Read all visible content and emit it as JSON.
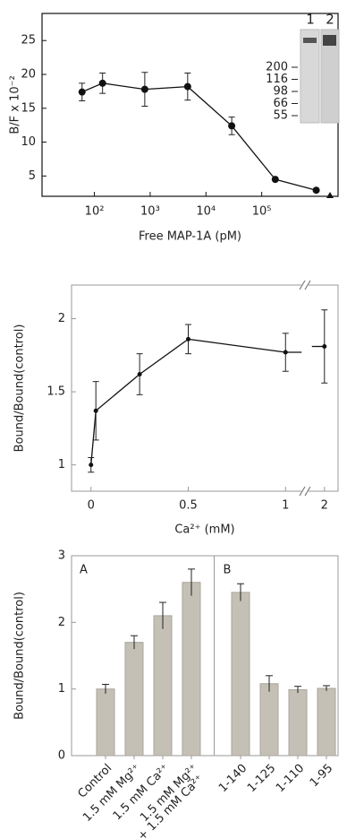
{
  "chart_data": [
    {
      "type": "line",
      "x_label": "Free MAP-1A (pM)",
      "y_label": "B/F x 10⁻²",
      "xscale": "log",
      "x": [
        60,
        140,
        800,
        4700,
        29000,
        175000,
        950000
      ],
      "values": [
        17.4,
        18.7,
        17.8,
        18.2,
        12.4,
        4.5,
        2.9
      ],
      "errors": [
        1.3,
        1.5,
        2.5,
        2.0,
        1.3,
        null,
        null
      ],
      "xlim": [
        11.5,
        2340000
      ],
      "ylim": [
        2,
        29
      ],
      "xticks": [
        {
          "value": 100,
          "label": "10²"
        },
        {
          "value": 1000,
          "label": "10³"
        },
        {
          "value": 10000,
          "label": "10⁴"
        },
        {
          "value": 100000,
          "label": "10⁵"
        }
      ],
      "yticks": [
        5,
        10,
        15,
        20,
        25
      ],
      "color": "#111",
      "inset": {
        "lanes": [
          "1",
          "2"
        ],
        "markers": [
          "200",
          "116",
          "98",
          "66",
          "55"
        ]
      }
    },
    {
      "type": "line",
      "x_label": "Ca²⁺ (mM)",
      "y_label": "Bound/Bound(control)",
      "x": [
        0,
        0.025,
        0.25,
        0.5,
        1,
        2
      ],
      "values": [
        1.0,
        1.37,
        1.62,
        1.86,
        1.77,
        1.81
      ],
      "errors": [
        0.05,
        0.2,
        0.14,
        0.1,
        0.13,
        0.25
      ],
      "xlim": [
        -0.1,
        2.07
      ],
      "x_break": [
        1.1,
        1.9
      ],
      "ylim": [
        0.82,
        2.23
      ],
      "xticks": [
        0,
        0.5,
        1,
        2
      ],
      "yticks": [
        1,
        1.5,
        2
      ],
      "color": "#111"
    },
    {
      "type": "bar",
      "y_label": "Bound/Bound(control)",
      "groups": [
        {
          "label": "A",
          "count": 4
        },
        {
          "label": "B",
          "count": 4
        }
      ],
      "categories": [
        "Control",
        "1.5 mM Mg²⁺",
        "1.5 mM Ca²⁺",
        [
          "1.5 mM Mg²⁺",
          "+ 1.5 mM Ca²⁺"
        ],
        "1-140",
        "1-125",
        "1-110",
        "1-95"
      ],
      "values": [
        1.0,
        1.7,
        2.1,
        2.6,
        2.45,
        1.08,
        0.99,
        1.01
      ],
      "errors": [
        0.07,
        0.1,
        0.2,
        0.2,
        0.13,
        0.12,
        0.05,
        0.04
      ],
      "ylim": [
        0,
        3
      ],
      "yticks": [
        0,
        1,
        2,
        3
      ],
      "color": "#c4c0b6"
    }
  ]
}
